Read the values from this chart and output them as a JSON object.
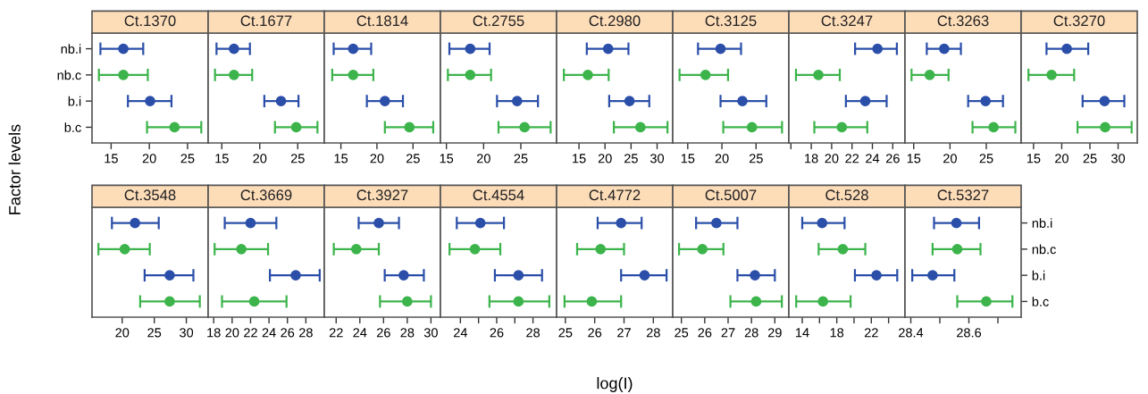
{
  "chart_data": [
    {
      "type": "scatter",
      "orientation": "horizontal",
      "marker": "circle",
      "title": "Ct.1370",
      "ylabel": "Factor levels",
      "categories": [
        "nb.i",
        "nb.c",
        "b.i",
        "b.c"
      ],
      "colors": [
        "#2b4fa9",
        "#3cb44b",
        "#2b4fa9",
        "#3cb44b"
      ],
      "values": [
        16.6,
        16.6,
        20.1,
        23.3
      ],
      "errors": [
        [
          13.6,
          19.2
        ],
        [
          13.4,
          19.8
        ],
        [
          17.2,
          22.9
        ],
        [
          19.7,
          26.8
        ]
      ],
      "xlim": [
        12.5,
        27.7
      ],
      "xticks": [
        15,
        20,
        25
      ]
    },
    {
      "type": "scatter",
      "orientation": "horizontal",
      "marker": "circle",
      "tick_labels": "x",
      "title": "Ct.1677",
      "categories": [
        null,
        null,
        null,
        null
      ],
      "colors": [
        "#2b4fa9",
        "#3cb44b",
        "#2b4fa9",
        "#3cb44b"
      ],
      "values": [
        16.6,
        16.6,
        22.8,
        24.8
      ],
      "errors": [
        [
          14.3,
          18.7
        ],
        [
          14.1,
          19.0
        ],
        [
          20.6,
          25.1
        ],
        [
          22.0,
          27.6
        ]
      ],
      "xlim": [
        13.2,
        28.5
      ],
      "xticks": [
        15,
        20,
        25
      ]
    },
    {
      "type": "scatter",
      "orientation": "horizontal",
      "marker": "circle",
      "tick_labels": "x",
      "title": "Ct.1814",
      "categories": [
        null,
        null,
        null,
        null
      ],
      "colors": [
        "#2b4fa9",
        "#3cb44b",
        "#2b4fa9",
        "#3cb44b"
      ],
      "values": [
        16.7,
        16.7,
        21.1,
        24.5
      ],
      "errors": [
        [
          14.0,
          19.2
        ],
        [
          13.8,
          19.5
        ],
        [
          18.6,
          23.6
        ],
        [
          21.1,
          27.8
        ]
      ],
      "xlim": [
        12.7,
        28.8
      ],
      "xticks": [
        15,
        20,
        25
      ]
    },
    {
      "type": "scatter",
      "orientation": "horizontal",
      "marker": "circle",
      "tick_labels": "x",
      "title": "Ct.2755",
      "categories": [
        null,
        null,
        null,
        null
      ],
      "colors": [
        "#2b4fa9",
        "#3cb44b",
        "#2b4fa9",
        "#3cb44b"
      ],
      "values": [
        18.2,
        18.2,
        24.5,
        25.5
      ],
      "errors": [
        [
          15.4,
          20.8
        ],
        [
          15.2,
          21.0
        ],
        [
          21.8,
          27.3
        ],
        [
          22.0,
          29.0
        ]
      ],
      "xlim": [
        14.2,
        29.8
      ],
      "xticks": [
        15,
        20,
        25
      ]
    },
    {
      "type": "scatter",
      "orientation": "horizontal",
      "marker": "circle",
      "tick_labels": "x",
      "title": "Ct.2980",
      "categories": [
        null,
        null,
        null,
        null
      ],
      "colors": [
        "#2b4fa9",
        "#3cb44b",
        "#2b4fa9",
        "#3cb44b"
      ],
      "values": [
        20.6,
        16.7,
        24.7,
        26.8
      ],
      "errors": [
        [
          16.5,
          24.5
        ],
        [
          12.1,
          20.7
        ],
        [
          20.8,
          28.5
        ],
        [
          21.7,
          32.0
        ]
      ],
      "xlim": [
        10.7,
        33.0
      ],
      "xticks": [
        15,
        20,
        25,
        30
      ]
    },
    {
      "type": "scatter",
      "orientation": "horizontal",
      "marker": "circle",
      "tick_labels": "x",
      "title": "Ct.3125",
      "categories": [
        null,
        null,
        null,
        null
      ],
      "colors": [
        "#2b4fa9",
        "#3cb44b",
        "#2b4fa9",
        "#3cb44b"
      ],
      "values": [
        19.8,
        17.6,
        23.0,
        24.4
      ],
      "errors": [
        [
          16.5,
          22.8
        ],
        [
          13.8,
          20.9
        ],
        [
          19.8,
          26.5
        ],
        [
          20.2,
          28.8
        ]
      ],
      "xlim": [
        12.8,
        29.8
      ],
      "xticks": [
        15,
        20,
        25
      ]
    },
    {
      "type": "scatter",
      "orientation": "horizontal",
      "marker": "circle",
      "tick_labels": "x",
      "title": "Ct.3247",
      "categories": [
        null,
        null,
        null,
        null
      ],
      "colors": [
        "#2b4fa9",
        "#3cb44b",
        "#2b4fa9",
        "#3cb44b"
      ],
      "values": [
        24.5,
        18.7,
        23.3,
        21.0
      ],
      "errors": [
        [
          22.3,
          26.4
        ],
        [
          16.5,
          20.8
        ],
        [
          21.4,
          25.4
        ],
        [
          18.3,
          23.5
        ]
      ],
      "xlim": [
        15.8,
        27.2
      ],
      "xticks": [
        {
          "value": 16,
          "label": null
        },
        18,
        20,
        22,
        24,
        26
      ]
    },
    {
      "type": "scatter",
      "orientation": "horizontal",
      "marker": "circle",
      "tick_labels": "x",
      "title": "Ct.3263",
      "categories": [
        null,
        null,
        null,
        null
      ],
      "colors": [
        "#2b4fa9",
        "#3cb44b",
        "#2b4fa9",
        "#3cb44b"
      ],
      "values": [
        19.2,
        17.2,
        24.9,
        26.0
      ],
      "errors": [
        [
          16.8,
          21.5
        ],
        [
          14.7,
          19.8
        ],
        [
          22.5,
          27.3
        ],
        [
          23.1,
          29.0
        ]
      ],
      "xlim": [
        13.8,
        29.8
      ],
      "xticks": [
        15,
        20,
        25
      ]
    },
    {
      "type": "scatter",
      "orientation": "horizontal",
      "marker": "circle",
      "tick_labels": "x",
      "title": "Ct.3270",
      "categories": [
        null,
        null,
        null,
        null
      ],
      "colors": [
        "#2b4fa9",
        "#3cb44b",
        "#2b4fa9",
        "#3cb44b"
      ],
      "values": [
        20.9,
        18.2,
        27.6,
        27.7
      ],
      "errors": [
        [
          17.3,
          24.7
        ],
        [
          14.1,
          22.2
        ],
        [
          23.7,
          31.1
        ],
        [
          22.8,
          32.4
        ]
      ],
      "xlim": [
        12.8,
        33.4
      ],
      "xticks": [
        15,
        20,
        25,
        30
      ]
    },
    {
      "type": "scatter",
      "orientation": "horizontal",
      "marker": "circle",
      "tick_labels": "x",
      "title": "Ct.3548",
      "categories": [
        null,
        null,
        null,
        null
      ],
      "colors": [
        "#2b4fa9",
        "#3cb44b",
        "#2b4fa9",
        "#3cb44b"
      ],
      "values": [
        22.0,
        20.4,
        27.4,
        27.4
      ],
      "errors": [
        [
          18.4,
          25.7
        ],
        [
          16.3,
          24.3
        ],
        [
          23.5,
          31.1
        ],
        [
          22.8,
          32.1
        ]
      ],
      "xlim": [
        15.3,
        33.4
      ],
      "xticks": [
        20,
        25,
        30
      ]
    },
    {
      "type": "scatter",
      "orientation": "horizontal",
      "marker": "circle",
      "tick_labels": "x",
      "title": "Ct.3669",
      "categories": [
        null,
        null,
        null,
        null
      ],
      "colors": [
        "#2b4fa9",
        "#3cb44b",
        "#2b4fa9",
        "#3cb44b"
      ],
      "values": [
        22.0,
        21.0,
        26.9,
        22.4
      ],
      "errors": [
        [
          19.2,
          24.8
        ],
        [
          18.1,
          23.9
        ],
        [
          24.1,
          29.5
        ],
        [
          18.9,
          25.9
        ]
      ],
      "xlim": [
        17.4,
        30.0
      ],
      "xticks": [
        18,
        20,
        22,
        24,
        26,
        28
      ]
    },
    {
      "type": "scatter",
      "orientation": "horizontal",
      "marker": "circle",
      "tick_labels": "x",
      "title": "Ct.3927",
      "categories": [
        null,
        null,
        null,
        null
      ],
      "colors": [
        "#2b4fa9",
        "#3cb44b",
        "#2b4fa9",
        "#3cb44b"
      ],
      "values": [
        25.6,
        23.7,
        27.7,
        28.0
      ],
      "errors": [
        [
          23.9,
          27.3
        ],
        [
          21.8,
          25.6
        ],
        [
          26.1,
          29.4
        ],
        [
          25.7,
          30.0
        ]
      ],
      "xlim": [
        21.0,
        30.8
      ],
      "xticks": [
        22,
        24,
        26,
        28,
        30
      ]
    },
    {
      "type": "scatter",
      "orientation": "horizontal",
      "marker": "circle",
      "tick_labels": "x",
      "title": "Ct.4554",
      "categories": [
        null,
        null,
        null,
        null
      ],
      "colors": [
        "#2b4fa9",
        "#3cb44b",
        "#2b4fa9",
        "#3cb44b"
      ],
      "values": [
        25.1,
        24.8,
        27.2,
        27.2
      ],
      "errors": [
        [
          23.8,
          26.4
        ],
        [
          23.4,
          26.2
        ],
        [
          25.9,
          28.5
        ],
        [
          25.6,
          28.9
        ]
      ],
      "xlim": [
        22.9,
        29.3
      ],
      "xticks": [
        24,
        {
          "value": 25,
          "label": null
        },
        26,
        {
          "value": 27,
          "label": null
        },
        28
      ]
    },
    {
      "type": "scatter",
      "orientation": "horizontal",
      "marker": "circle",
      "tick_labels": "x",
      "title": "Ct.4772",
      "xlabel": "log(I)",
      "categories": [
        null,
        null,
        null,
        null
      ],
      "colors": [
        "#2b4fa9",
        "#3cb44b",
        "#2b4fa9",
        "#3cb44b"
      ],
      "values": [
        26.9,
        26.2,
        27.7,
        25.9
      ],
      "errors": [
        [
          26.1,
          27.6
        ],
        [
          25.4,
          27.0
        ],
        [
          26.9,
          28.45
        ],
        [
          24.97,
          26.9
        ]
      ],
      "xlim": [
        24.7,
        28.66
      ],
      "xticks": [
        25,
        26,
        27,
        28
      ]
    },
    {
      "type": "scatter",
      "orientation": "horizontal",
      "marker": "circle",
      "tick_labels": "x",
      "title": "Ct.5007",
      "categories": [
        null,
        null,
        null,
        null
      ],
      "colors": [
        "#2b4fa9",
        "#3cb44b",
        "#2b4fa9",
        "#3cb44b"
      ],
      "values": [
        26.5,
        25.9,
        28.15,
        28.2
      ],
      "errors": [
        [
          25.63,
          27.4
        ],
        [
          24.9,
          26.8
        ],
        [
          27.4,
          29.0
        ],
        [
          27.1,
          29.3
        ]
      ],
      "xlim": [
        24.63,
        29.6
      ],
      "xticks": [
        25,
        26,
        27,
        28,
        29
      ]
    },
    {
      "type": "scatter",
      "orientation": "horizontal",
      "marker": "circle",
      "tick_labels": "x",
      "title": "Ct.528",
      "categories": [
        null,
        null,
        null,
        null
      ],
      "colors": [
        "#2b4fa9",
        "#3cb44b",
        "#2b4fa9",
        "#3cb44b"
      ],
      "values": [
        16.3,
        18.7,
        22.6,
        16.4
      ],
      "errors": [
        [
          14.0,
          18.9
        ],
        [
          15.9,
          21.3
        ],
        [
          20.1,
          25.0
        ],
        [
          13.3,
          19.6
        ]
      ],
      "xlim": [
        12.45,
        25.9
      ],
      "xticks": [
        14,
        {
          "value": 16,
          "label": null
        },
        18,
        {
          "value": 20,
          "label": null
        },
        22,
        {
          "value": 24,
          "label": null
        }
      ]
    },
    {
      "type": "scatter",
      "orientation": "horizontal",
      "marker": "circle",
      "title": "Ct.5327",
      "categories": [
        "nb.i",
        "nb.c",
        "b.i",
        "b.c"
      ],
      "colors": [
        "#2b4fa9",
        "#3cb44b",
        "#2b4fa9",
        "#3cb44b"
      ],
      "values": [
        28.557,
        28.56,
        28.475,
        28.66
      ],
      "errors": [
        [
          28.48,
          28.635
        ],
        [
          28.475,
          28.64
        ],
        [
          28.405,
          28.55
        ],
        [
          28.56,
          28.75
        ]
      ],
      "xlim": [
        28.38,
        28.78
      ],
      "xticks": [
        28.4,
        {
          "value": 28.5,
          "label": null
        },
        28.6,
        {
          "value": 28.7,
          "label": null
        }
      ]
    }
  ]
}
